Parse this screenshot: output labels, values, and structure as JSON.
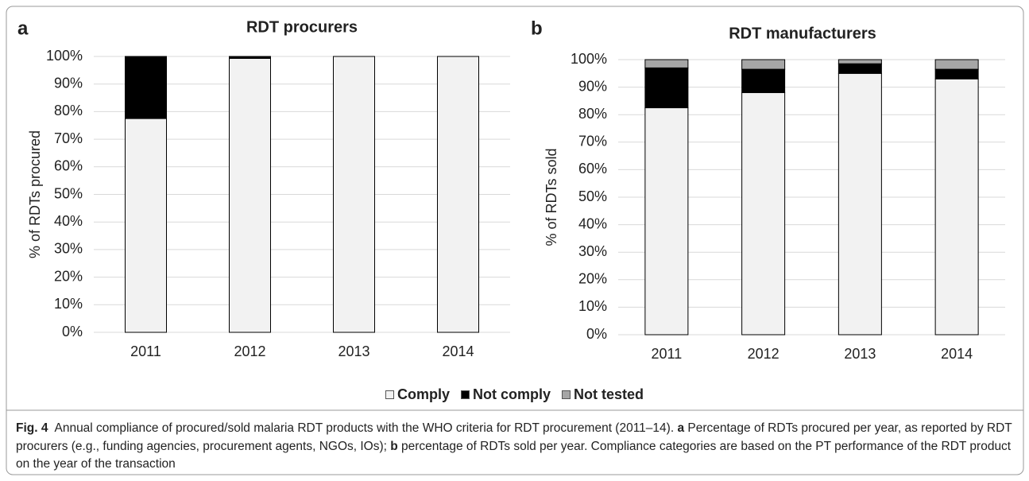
{
  "chart_data": [
    {
      "type": "stacked_bar",
      "panel": "a",
      "title": "RDT procurers",
      "y_label": "% of RDTs procured",
      "categories": [
        "2011",
        "2012",
        "2013",
        "2014"
      ],
      "series": [
        {
          "color": "#f2f2f2",
          "values": [
            77.5,
            99.3,
            100,
            100
          ]
        },
        {
          "color": "#000000",
          "values": [
            22.5,
            0.7,
            0,
            0
          ]
        },
        {
          "color": "#a6a6a6",
          "values": [
            0,
            0,
            0,
            0
          ]
        }
      ],
      "ylim": [
        0,
        100
      ],
      "yticks": [
        {
          "value": 0,
          "label": "0%"
        },
        {
          "value": 10,
          "label": "10%"
        },
        {
          "value": 20,
          "label": "20%"
        },
        {
          "value": 30,
          "label": "30%"
        },
        {
          "value": 40,
          "label": "40%"
        },
        {
          "value": 50,
          "label": "50%"
        },
        {
          "value": 60,
          "label": "60%"
        },
        {
          "value": 70,
          "label": "70%"
        },
        {
          "value": 80,
          "label": "80%"
        },
        {
          "value": 90,
          "label": "90%"
        },
        {
          "value": 100,
          "label": "100%"
        }
      ],
      "grid": true
    },
    {
      "type": "stacked_bar",
      "panel": "b",
      "title": "RDT manufacturers",
      "y_label": "% of RDTs sold",
      "categories": [
        "2011",
        "2012",
        "2013",
        "2014"
      ],
      "series": [
        {
          "name": "Comply",
          "color": "#f2f2f2",
          "values": [
            82.5,
            88,
            95,
            93
          ]
        },
        {
          "name": "Not comply",
          "color": "#000000",
          "values": [
            14.5,
            8.5,
            3.5,
            3.5
          ]
        },
        {
          "name": "Not tested",
          "color": "#a6a6a6",
          "values": [
            3,
            3.5,
            1.5,
            3.5
          ]
        }
      ],
      "ylim": [
        0,
        100
      ],
      "yticks": [
        {
          "value": 0,
          "label": "0%"
        },
        {
          "value": 10,
          "label": "10%"
        },
        {
          "value": 20,
          "label": "20%"
        },
        {
          "value": 30,
          "label": "30%"
        },
        {
          "value": 40,
          "label": "40%"
        },
        {
          "value": 50,
          "label": "50%"
        },
        {
          "value": 60,
          "label": "60%"
        },
        {
          "value": 70,
          "label": "70%"
        },
        {
          "value": 80,
          "label": "80%"
        },
        {
          "value": 90,
          "label": "90%"
        },
        {
          "value": 100,
          "label": "100%"
        }
      ],
      "grid": true
    }
  ],
  "caption_label": "Fig. 4",
  "caption": [
    "Annual compliance of procured/sold malaria RDT products with the WHO criteria for RDT procurement (2011–14). ",
    "a",
    " Percentage of RDTs procured per year, as reported by RDT procurers (e.g., funding agencies, procurement agents, NGOs, IOs); ",
    "b",
    " percentage of RDTs sold per year. Compliance categories are based on the PT performance of the RDT product on the year of the transaction"
  ]
}
